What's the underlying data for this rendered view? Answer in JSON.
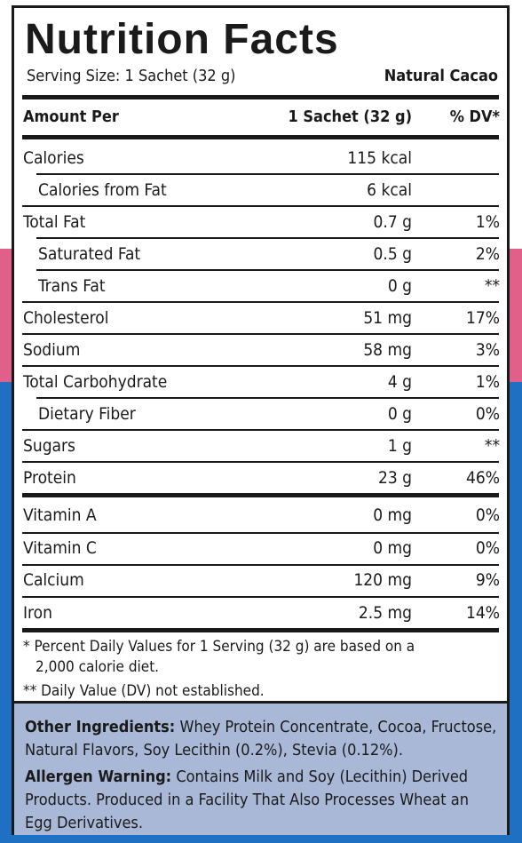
{
  "title": "Nutrition Facts",
  "serving_size": "Serving Size: 1 Sachet (32 g)",
  "flavor": "Natural Cacao",
  "header": {
    "amount_per": "Amount Per",
    "amount_col": "1 Sachet (32 g)",
    "dv_col": "% DV*"
  },
  "rows": [
    {
      "name": "Calories",
      "amount": "115 kcal",
      "dv": ""
    },
    {
      "name": "Calories from Fat",
      "amount": "6 kcal",
      "dv": ""
    },
    {
      "name": "Total Fat",
      "amount": "0.7 g",
      "dv": "1%"
    },
    {
      "name": "Saturated Fat",
      "amount": "0.5 g",
      "dv": "2%"
    },
    {
      "name": "Trans Fat",
      "amount": "0 g",
      "dv": "**"
    },
    {
      "name": "Cholesterol",
      "amount": "51 mg",
      "dv": "17%"
    },
    {
      "name": "Sodium",
      "amount": "58 mg",
      "dv": "3%"
    },
    {
      "name": "Total Carbohydrate",
      "amount": "4 g",
      "dv": "1%"
    },
    {
      "name": "Dietary Fiber",
      "amount": "0 g",
      "dv": "0%"
    },
    {
      "name": "Sugars",
      "amount": "1 g",
      "dv": "**"
    },
    {
      "name": "Protein",
      "amount": "23 g",
      "dv": "46%"
    }
  ],
  "vitamins": [
    {
      "name": "Vitamin A",
      "amount": "0 mg",
      "dv": "0%"
    },
    {
      "name": "Vitamin C",
      "amount": "0 mg",
      "dv": "0%"
    },
    {
      "name": "Calcium",
      "amount": "120 mg",
      "dv": "9%"
    },
    {
      "name": "Iron",
      "amount": "2.5 mg",
      "dv": "14%"
    }
  ],
  "footnotes": {
    "line1": "* Percent Daily Values for 1 Serving (32 g) are based on a",
    "line2": "2,000 calorie diet.",
    "line3": "** Daily Value (DV) not established."
  },
  "other_ingredients": {
    "label": "Other Ingredients:",
    "text": "Whey Protein Concentrate, Cocoa, Fructose, Natural Flavors, Soy Lecithin (0.2%), Stevia (0.12%)."
  },
  "allergen_warning": {
    "label": "Allergen Warning:",
    "text": "Contains Milk and Soy (Lecithin) Derived Products. Produced in a Facility That Also Processes Wheat an Egg Derivatives."
  },
  "colors": {
    "pink": "#e0608a",
    "blue": "#1f6fc2",
    "ingredients_bg": "#aab8d8"
  }
}
